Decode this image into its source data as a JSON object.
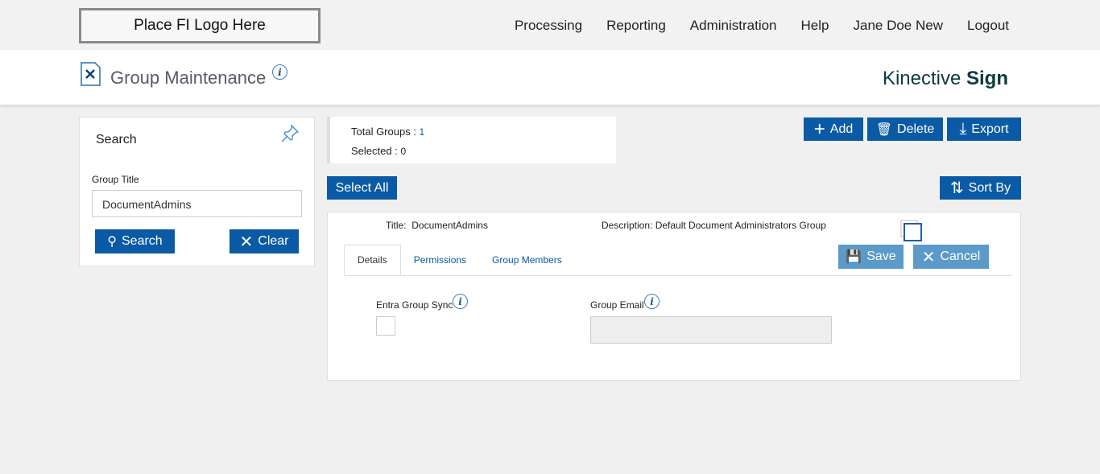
{
  "header": {
    "logo": "Place FI Logo Here",
    "nav": [
      "Processing",
      "Reporting",
      "Administration",
      "Help",
      "Jane Doe New",
      "Logout"
    ]
  },
  "page": {
    "title": "Group Maintenance",
    "brand_light": "Kinective ",
    "brand_bold": "Sign",
    "info": "i"
  },
  "search": {
    "heading": "Search",
    "group_title_label": "Group Title",
    "group_title_value": "DocumentAdmins",
    "search_label": "Search",
    "clear_label": "Clear"
  },
  "summary": {
    "total_label": "Total Groups : ",
    "total": "1",
    "selected_label": "Selected : ",
    "selected": "0"
  },
  "toolbar": {
    "add": "Add",
    "delete": "Delete",
    "export": "Export",
    "select_all": "Select All",
    "sort_by": "Sort By"
  },
  "record": {
    "title_label": "Title:",
    "title": "DocumentAdmins",
    "desc_label": "Description:",
    "desc": "Default Document Administrators Group",
    "save": "Save",
    "cancel": "Cancel",
    "tabs": [
      "Details",
      "Permissions",
      "Group Members"
    ],
    "entra_label": "Entra Group Sync",
    "email_label": "Group Email",
    "email_value": ""
  },
  "colors": {
    "primary": "#0a5aa5",
    "disabled": "#5b9ac9"
  }
}
